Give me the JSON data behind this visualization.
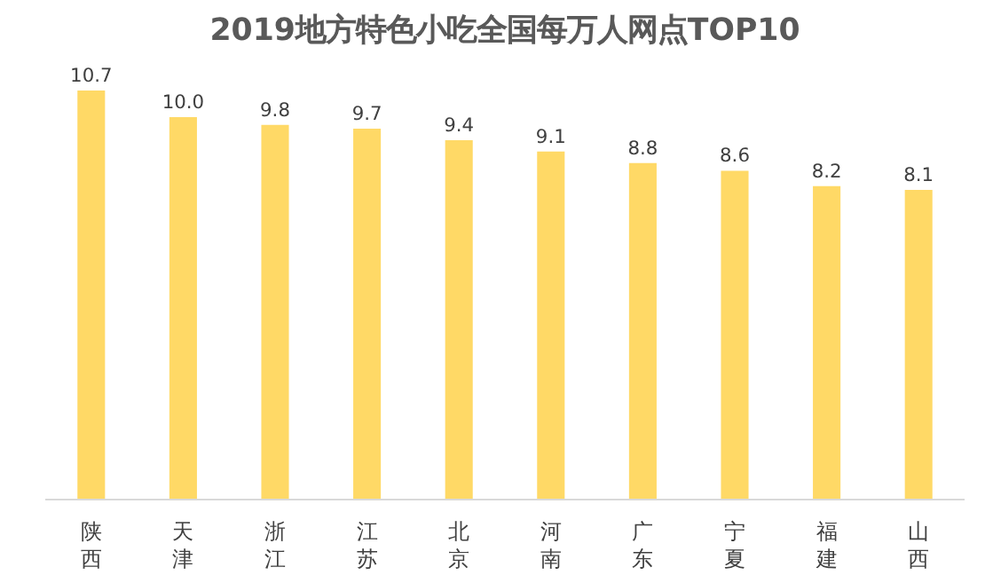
{
  "chart_data": {
    "type": "bar",
    "title": "2019地方特色小吃全国每万人网点TOP10",
    "categories": [
      "陕西",
      "天津",
      "浙江",
      "江苏",
      "北京",
      "河南",
      "广东",
      "宁夏",
      "福建",
      "山西"
    ],
    "values": [
      10.7,
      10.0,
      9.8,
      9.7,
      9.4,
      9.1,
      8.8,
      8.6,
      8.2,
      8.1
    ],
    "value_labels": [
      "10.7",
      "10.0",
      "9.8",
      "9.7",
      "9.4",
      "9.1",
      "8.8",
      "8.6",
      "8.2",
      "8.1"
    ],
    "color": "#ffd966",
    "tick_labels": "x"
  }
}
